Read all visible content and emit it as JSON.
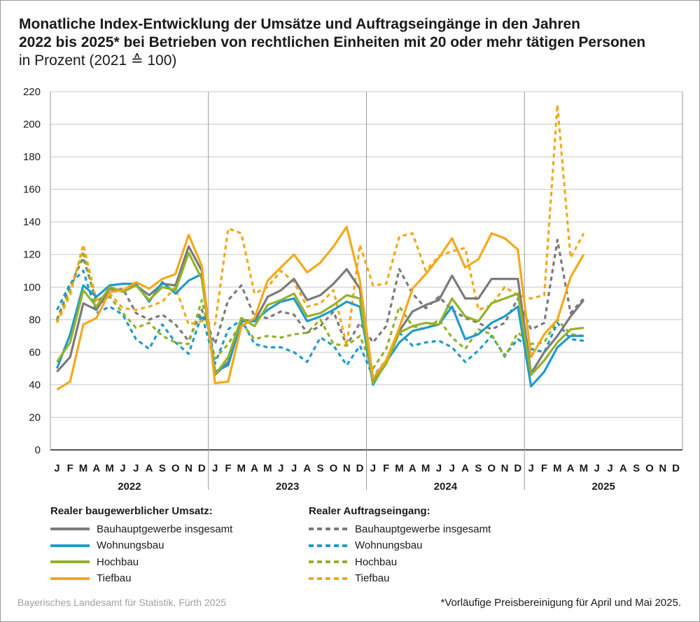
{
  "title": {
    "line1": "Monatliche Index-Entwicklung der Umsätze und Auftragseingänge in den Jahren",
    "line2": "2022 bis 2025* bei Betrieben von rechtlichen Einheiten mit 20 oder mehr tätigen Personen",
    "line3": "in Prozent (2021 ≙ 100)"
  },
  "legend": {
    "left_heading": "Realer baugewerblicher Umsatz:",
    "right_heading": "Realer Auftragseingang:"
  },
  "source": "Bayerisches Landesamt für Statistik, Fürth 2025",
  "footnote": "*Vorläufige Preisbereinigung für April und Mai 2025.",
  "chart_data": {
    "type": "line",
    "ylim": [
      0,
      220
    ],
    "yticks": [
      0,
      20,
      40,
      60,
      80,
      100,
      120,
      140,
      160,
      180,
      200,
      220
    ],
    "grid": true,
    "months": [
      "J",
      "F",
      "M",
      "A",
      "M",
      "J",
      "J",
      "A",
      "S",
      "O",
      "N",
      "D"
    ],
    "years": [
      "2022",
      "2023",
      "2024",
      "2025"
    ],
    "colors": {
      "gray": "#7a7a7a",
      "blue": "#1f9bc8",
      "green": "#93b22a",
      "orange": "#f4a81c"
    },
    "series": [
      {
        "name": "Bauhauptgewerbe insgesamt",
        "group": "Realer baugewerblicher Umsatz",
        "color": "#7a7a7a",
        "dashed": false,
        "values": [
          48,
          57,
          90,
          86,
          99,
          98,
          101,
          95,
          102,
          101,
          125,
          110,
          46,
          54,
          80,
          79,
          94,
          98,
          105,
          92,
          95,
          102,
          111,
          99,
          42,
          55,
          73,
          85,
          89,
          92,
          107,
          93,
          93,
          105,
          105,
          105,
          47,
          60,
          70,
          82,
          92
        ]
      },
      {
        "name": "Wohnungsbau",
        "group": "Realer baugewerblicher Umsatz",
        "color": "#1f9bc8",
        "dashed": false,
        "values": [
          50,
          71,
          101,
          94,
          101,
          102,
          102,
          91,
          103,
          96,
          104,
          108,
          48,
          52,
          79,
          79,
          86,
          91,
          93,
          79,
          82,
          86,
          91,
          88,
          40,
          54,
          66,
          73,
          75,
          77,
          88,
          68,
          71,
          78,
          82,
          88,
          39,
          48,
          63,
          70,
          70
        ]
      },
      {
        "name": "Hochbau",
        "group": "Realer baugewerblicher Umsatz",
        "color": "#93b22a",
        "dashed": false,
        "values": [
          54,
          66,
          98,
          88,
          100,
          97,
          101,
          92,
          100,
          98,
          121,
          105,
          46,
          57,
          81,
          76,
          89,
          92,
          96,
          82,
          84,
          89,
          95,
          93,
          41,
          53,
          72,
          76,
          78,
          77,
          93,
          82,
          79,
          90,
          93,
          96,
          46,
          55,
          66,
          74,
          75
        ]
      },
      {
        "name": "Tiefbau",
        "group": "Realer baugewerblicher Umsatz",
        "color": "#f4a81c",
        "dashed": false,
        "values": [
          37,
          42,
          77,
          81,
          97,
          98,
          103,
          99,
          105,
          108,
          132,
          113,
          41,
          42,
          76,
          81,
          104,
          112,
          120,
          109,
          115,
          125,
          137,
          104,
          44,
          55,
          75,
          99,
          108,
          118,
          130,
          112,
          117,
          133,
          130,
          123,
          57,
          71,
          80,
          106,
          120
        ]
      },
      {
        "name": "Bauhauptgewerbe insgesamt",
        "group": "Realer Auftragseingang",
        "color": "#7a7a7a",
        "dashed": true,
        "values": [
          80,
          101,
          118,
          91,
          97,
          99,
          84,
          80,
          83,
          77,
          67,
          86,
          65,
          92,
          101,
          82,
          81,
          85,
          83,
          72,
          76,
          85,
          64,
          78,
          66,
          76,
          111,
          96,
          87,
          94,
          86,
          81,
          78,
          74,
          78,
          93,
          74,
          78,
          129,
          84,
          93
        ]
      },
      {
        "name": "Wohnungsbau",
        "group": "Realer Auftragseingang",
        "color": "#1f9bc8",
        "dashed": true,
        "values": [
          86,
          102,
          110,
          84,
          88,
          83,
          68,
          62,
          77,
          66,
          59,
          83,
          53,
          74,
          80,
          65,
          63,
          63,
          60,
          54,
          69,
          64,
          52,
          64,
          45,
          55,
          72,
          64,
          66,
          67,
          63,
          54,
          61,
          70,
          58,
          68,
          62,
          60,
          78,
          68,
          67
        ]
      },
      {
        "name": "Hochbau",
        "group": "Realer Auftragseingang",
        "color": "#93b22a",
        "dashed": true,
        "values": [
          79,
          98,
          122,
          88,
          94,
          84,
          75,
          78,
          70,
          66,
          65,
          92,
          56,
          65,
          78,
          68,
          70,
          69,
          71,
          72,
          80,
          65,
          64,
          70,
          50,
          62,
          88,
          76,
          74,
          80,
          69,
          62,
          74,
          71,
          57,
          72,
          65,
          66,
          80,
          71,
          70
        ]
      },
      {
        "name": "Tiefbau",
        "group": "Realer Auftragseingang",
        "color": "#f4a81c",
        "dashed": true,
        "values": [
          78,
          95,
          126,
          92,
          96,
          87,
          86,
          88,
          91,
          100,
          77,
          79,
          77,
          136,
          133,
          96,
          100,
          110,
          103,
          88,
          90,
          98,
          64,
          126,
          101,
          102,
          131,
          133,
          110,
          119,
          122,
          124,
          86,
          89,
          100,
          95,
          93,
          95,
          212,
          118,
          133
        ]
      }
    ]
  }
}
